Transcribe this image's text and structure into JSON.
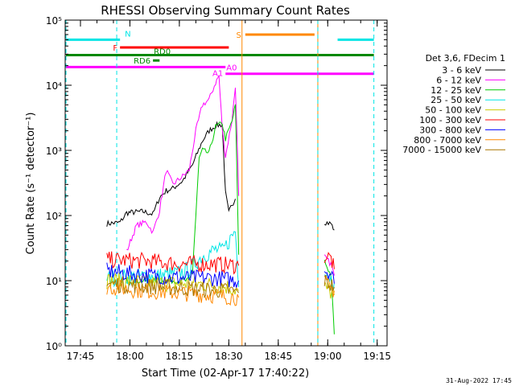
{
  "chart_data": {
    "type": "line",
    "title": "RHESSI Observing Summary Count Rates",
    "xlabel": "Start Time (02-Apr-17 17:40:22)",
    "ylabel": "Count Rate (s⁻¹ detector⁻¹)",
    "footer_date": "31-Aug-2022 17:45",
    "x_scale": "time",
    "xlim": [
      "17:40:22",
      "19:18:00"
    ],
    "x_ticks": [
      "17:45",
      "18:00",
      "18:15",
      "18:30",
      "18:45",
      "19:00",
      "19:15"
    ],
    "y_scale": "log",
    "ylim": [
      1,
      100000
    ],
    "y_ticks": [
      "10⁰",
      "10¹",
      "10²",
      "10³",
      "10⁴",
      "10⁵"
    ],
    "legend": {
      "title": "Det 3,6, FDecim 1",
      "placement": "right",
      "entries": [
        {
          "label": "3 - 6 keV",
          "color": "#000000"
        },
        {
          "label": "6 - 12 keV",
          "color": "#ff00ff"
        },
        {
          "label": "12 - 25 keV",
          "color": "#00cc00"
        },
        {
          "label": "25 - 50 keV",
          "color": "#00e5e5"
        },
        {
          "label": "50 - 100 keV",
          "color": "#cccc00"
        },
        {
          "label": "100 - 300 keV",
          "color": "#ff0000"
        },
        {
          "label": "300 - 800 keV",
          "color": "#0000ff"
        },
        {
          "label": "800 - 7000 keV",
          "color": "#ff8800"
        },
        {
          "label": "7000 - 15000 keV",
          "color": "#aa7700"
        }
      ]
    },
    "series": [
      {
        "name": "3 - 6 keV",
        "color": "#000000",
        "segments": [
          [
            [
              "17:53",
              75
            ],
            [
              "17:57",
              78
            ],
            [
              "17:59",
              110
            ],
            [
              "18:04",
              115
            ],
            [
              "18:07",
              105
            ],
            [
              "18:09",
              190
            ],
            [
              "18:11",
              240
            ],
            [
              "18:13",
              260
            ],
            [
              "18:16",
              340
            ],
            [
              "18:19",
              600
            ],
            [
              "18:22",
              1400
            ],
            [
              "18:24",
              2000
            ],
            [
              "18:26",
              2400
            ],
            [
              "18:28",
              2500
            ],
            [
              "18:29",
              220
            ],
            [
              "18:30",
              110
            ],
            [
              "18:31",
              150
            ],
            [
              "18:32",
              180
            ]
          ],
          [
            [
              "18:59",
              80
            ],
            [
              "19:01",
              75
            ],
            [
              "19:02",
              60
            ]
          ]
        ]
      },
      {
        "name": "6 - 12 keV",
        "color": "#ff00ff",
        "segments": [
          [
            [
              "17:59",
              28
            ],
            [
              "18:02",
              70
            ],
            [
              "18:05",
              80
            ],
            [
              "18:07",
              55
            ],
            [
              "18:09",
              120
            ],
            [
              "18:11",
              500
            ],
            [
              "18:13",
              300
            ],
            [
              "18:16",
              400
            ],
            [
              "18:18",
              500
            ],
            [
              "18:20",
              2000
            ],
            [
              "18:22",
              5000
            ],
            [
              "18:24",
              6000
            ],
            [
              "18:26",
              11000
            ],
            [
              "18:27",
              14000
            ],
            [
              "18:28",
              2200
            ],
            [
              "18:29",
              800
            ],
            [
              "18:31",
              3000
            ],
            [
              "18:32",
              10000
            ],
            [
              "18:33",
              200
            ]
          ],
          [
            [
              "18:59",
              23
            ],
            [
              "19:01",
              18
            ],
            [
              "19:02",
              12
            ]
          ]
        ]
      },
      {
        "name": "12 - 25 keV",
        "color": "#00cc00",
        "segments": [
          [
            [
              "17:59",
              10
            ],
            [
              "18:12",
              10
            ],
            [
              "18:18",
              10
            ],
            [
              "18:19",
              14
            ],
            [
              "18:20",
              100
            ],
            [
              "18:21",
              750
            ],
            [
              "18:22",
              1000
            ],
            [
              "18:24",
              900
            ],
            [
              "18:26",
              2300
            ],
            [
              "18:28",
              2600
            ],
            [
              "18:29",
              1500
            ],
            [
              "18:31",
              2800
            ],
            [
              "18:32",
              5000
            ],
            [
              "18:33",
              25
            ]
          ],
          [
            [
              "18:59",
              20
            ],
            [
              "19:01",
              12
            ],
            [
              "19:02",
              1.5
            ]
          ]
        ]
      },
      {
        "name": "25 - 50 keV",
        "color": "#00e5e5",
        "segments": [
          [
            [
              "17:53",
              11
            ],
            [
              "18:10",
              12
            ],
            [
              "18:15",
              13
            ],
            [
              "18:18",
              15
            ],
            [
              "18:22",
              24
            ],
            [
              "18:26",
              30
            ],
            [
              "18:28",
              28
            ],
            [
              "18:30",
              40
            ],
            [
              "18:32",
              60
            ],
            [
              "18:33",
              8
            ]
          ],
          [
            [
              "18:59",
              16
            ],
            [
              "19:01",
              11
            ],
            [
              "19:02",
              9
            ]
          ]
        ]
      },
      {
        "name": "50 - 100 keV",
        "color": "#cccc00",
        "segments": [
          [
            [
              "17:53",
              10
            ],
            [
              "18:10",
              9
            ],
            [
              "18:20",
              9
            ],
            [
              "18:30",
              8
            ],
            [
              "18:33",
              7
            ]
          ],
          [
            [
              "18:59",
              8
            ],
            [
              "19:02",
              6
            ]
          ]
        ]
      },
      {
        "name": "100 - 300 keV",
        "color": "#ff0000",
        "segments": [
          [
            [
              "17:53",
              21
            ],
            [
              "18:05",
              20
            ],
            [
              "18:15",
              18
            ],
            [
              "18:25",
              18
            ],
            [
              "18:33",
              17
            ]
          ],
          [
            [
              "18:59",
              24
            ],
            [
              "19:01",
              22
            ],
            [
              "19:02",
              15
            ]
          ]
        ]
      },
      {
        "name": "300 - 800 keV",
        "color": "#0000ff",
        "segments": [
          [
            [
              "17:53",
              14
            ],
            [
              "18:05",
              12
            ],
            [
              "18:15",
              11
            ],
            [
              "18:25",
              11
            ],
            [
              "18:33",
              10
            ]
          ],
          [
            [
              "18:59",
              15
            ],
            [
              "19:01",
              13
            ],
            [
              "19:02",
              9
            ]
          ]
        ]
      },
      {
        "name": "800 - 7000 keV",
        "color": "#ff8800",
        "segments": [
          [
            [
              "17:53",
              8
            ],
            [
              "18:05",
              7
            ],
            [
              "18:15",
              6.5
            ],
            [
              "18:25",
              6
            ],
            [
              "18:33",
              5.5
            ]
          ],
          [
            [
              "18:59",
              9
            ],
            [
              "19:02",
              7
            ]
          ]
        ]
      },
      {
        "name": "7000 - 15000 keV",
        "color": "#aa7700",
        "segments": [
          [
            [
              "17:53",
              9
            ],
            [
              "18:10",
              8
            ],
            [
              "18:20",
              7.5
            ],
            [
              "18:30",
              7
            ],
            [
              "18:33",
              6.5
            ]
          ],
          [
            [
              "18:59",
              10
            ],
            [
              "19:02",
              8
            ]
          ]
        ]
      }
    ],
    "flag_bars": [
      {
        "label": "N",
        "color": "#00e5e5",
        "y": 50000,
        "segments": [
          [
            "17:40:22",
            "17:57"
          ],
          [
            "19:03",
            "19:14"
          ]
        ]
      },
      {
        "label": "F",
        "color": "#ff0000",
        "y": 38000,
        "segments": [
          [
            "17:57",
            "18:30"
          ]
        ]
      },
      {
        "label": "RD0",
        "color": "#008800",
        "y": 29000,
        "segments": [
          [
            "17:40:22",
            "19:14"
          ]
        ]
      },
      {
        "label": "RD6",
        "color": "#008800",
        "y": 24000,
        "segments": [
          [
            "18:07",
            "18:09"
          ]
        ]
      },
      {
        "label": "A0",
        "color": "#ff00ff",
        "y": 19000,
        "segments": [
          [
            "17:40:22",
            "18:29"
          ]
        ]
      },
      {
        "label": "A1",
        "color": "#ff00ff",
        "y": 15000,
        "segments": [
          [
            "18:29",
            "19:14"
          ]
        ]
      },
      {
        "label": "S",
        "color": "#ff8800",
        "y": 60000,
        "segments": [
          [
            "18:35",
            "18:56"
          ]
        ]
      }
    ],
    "vlines": [
      {
        "t": "17:40:22",
        "color": "#00e5e5",
        "style": "dashed"
      },
      {
        "t": "17:56",
        "color": "#00e5e5",
        "style": "dashed"
      },
      {
        "t": "18:34",
        "color": "#ff8800",
        "style": "solid"
      },
      {
        "t": "18:57",
        "color": "#ff8800",
        "style": "solid"
      },
      {
        "t": "18:57",
        "color": "#00e5e5",
        "style": "dashed"
      },
      {
        "t": "19:14",
        "color": "#00e5e5",
        "style": "dashed"
      }
    ]
  }
}
